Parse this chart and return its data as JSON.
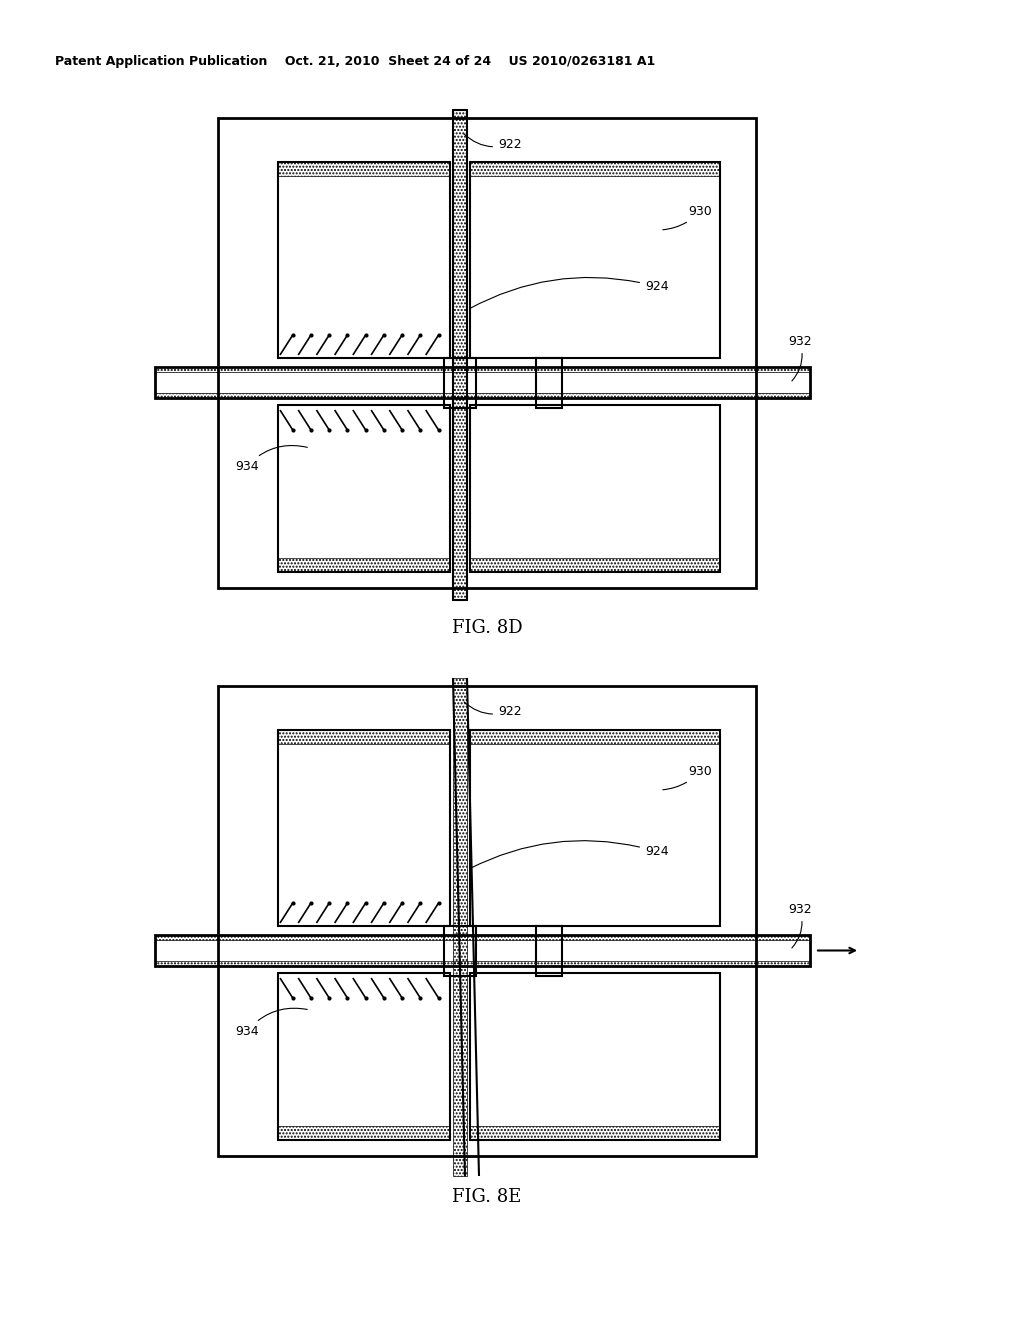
{
  "bg_color": "#ffffff",
  "header": "Patent Application Publication    Oct. 21, 2010  Sheet 24 of 24    US 2010/0263181 A1",
  "fig8d_label": "FIG. 8D",
  "fig8e_label": "FIG. 8E"
}
